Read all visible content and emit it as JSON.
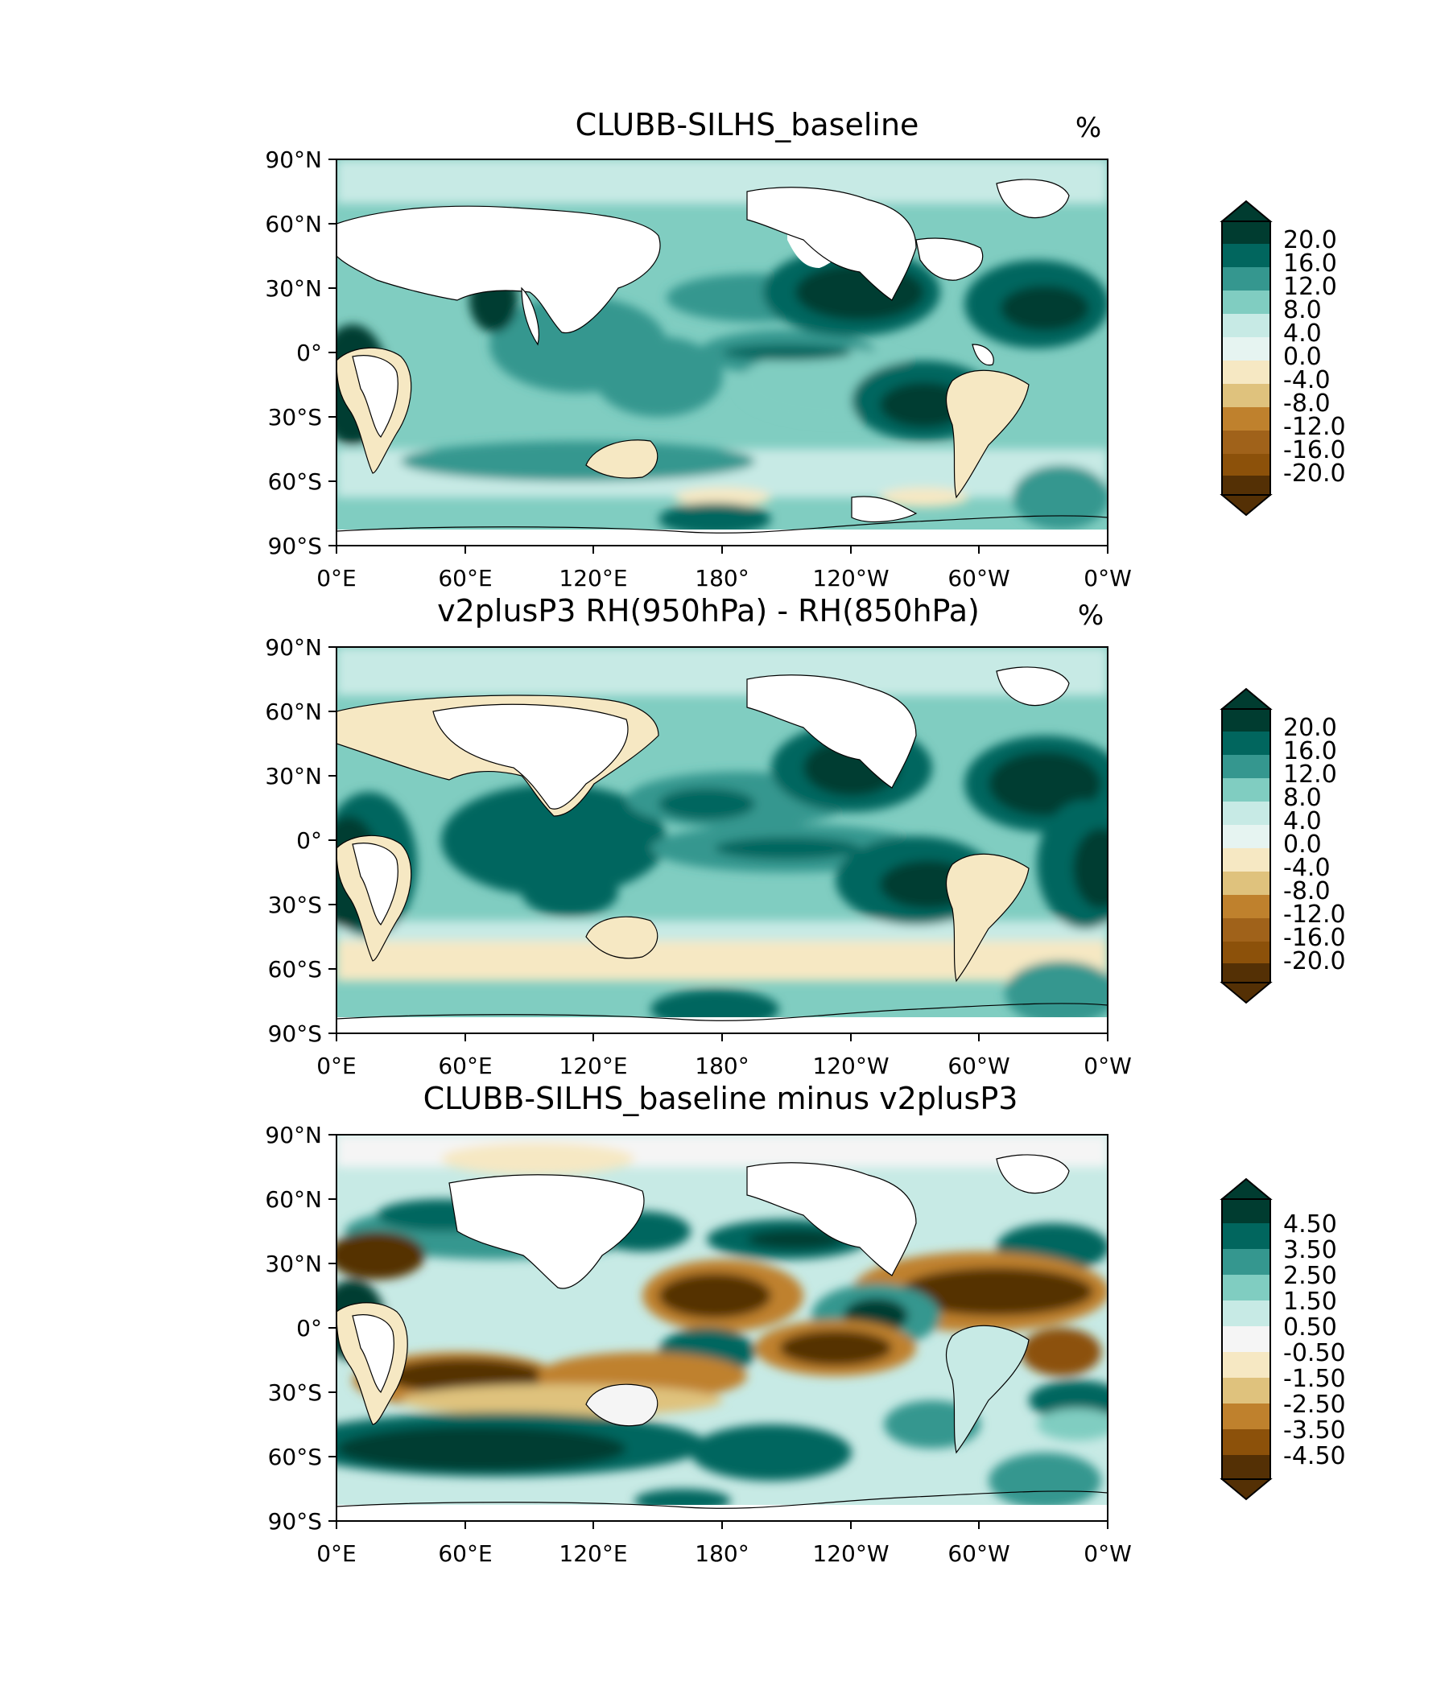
{
  "figure": {
    "colors": {
      "levels": [
        "#003c30",
        "#01665e",
        "#35978f",
        "#80cdc1",
        "#c7eae5",
        "#f5f5f5",
        "#f6e8c3",
        "#dfc27d",
        "#bf812d",
        "#8c510a",
        "#543005"
      ],
      "ocean_base": "#80cdc1",
      "land": "#ffffff",
      "coast": "#000000"
    },
    "panels": [
      {
        "title": "CLUBB-SILHS_baseline",
        "unit": "%",
        "x_ticks": [
          "0°E",
          "60°E",
          "120°E",
          "180°",
          "120°W",
          "60°W",
          "0°W"
        ],
        "y_ticks": [
          "90°N",
          "60°N",
          "30°N",
          "0°",
          "30°S",
          "60°S",
          "90°S"
        ],
        "colorbar_ticks": [
          "20.0",
          "16.0",
          "12.0",
          "8.0",
          "4.0",
          "0.0",
          "-4.0",
          "-8.0",
          "-12.0",
          "-16.0",
          "-20.0"
        ]
      },
      {
        "title": "v2plusP3 RH(950hPa) - RH(850hPa)",
        "unit": "%",
        "x_ticks": [
          "0°E",
          "60°E",
          "120°E",
          "180°",
          "120°W",
          "60°W",
          "0°W"
        ],
        "y_ticks": [
          "90°N",
          "60°N",
          "30°N",
          "0°",
          "30°S",
          "60°S",
          "90°S"
        ],
        "colorbar_ticks": [
          "20.0",
          "16.0",
          "12.0",
          "8.0",
          "4.0",
          "0.0",
          "-4.0",
          "-8.0",
          "-12.0",
          "-16.0",
          "-20.0"
        ]
      },
      {
        "title": "CLUBB-SILHS_baseline minus v2plusP3",
        "unit": "",
        "x_ticks": [
          "0°E",
          "60°E",
          "120°E",
          "180°",
          "120°W",
          "60°W",
          "0°W"
        ],
        "y_ticks": [
          "90°N",
          "60°N",
          "30°N",
          "0°",
          "30°S",
          "60°S",
          "90°S"
        ],
        "colorbar_ticks": [
          "4.50",
          "3.50",
          "2.50",
          "1.50",
          "0.50",
          "-0.50",
          "-1.50",
          "-2.50",
          "-3.50",
          "-4.50"
        ]
      }
    ]
  }
}
